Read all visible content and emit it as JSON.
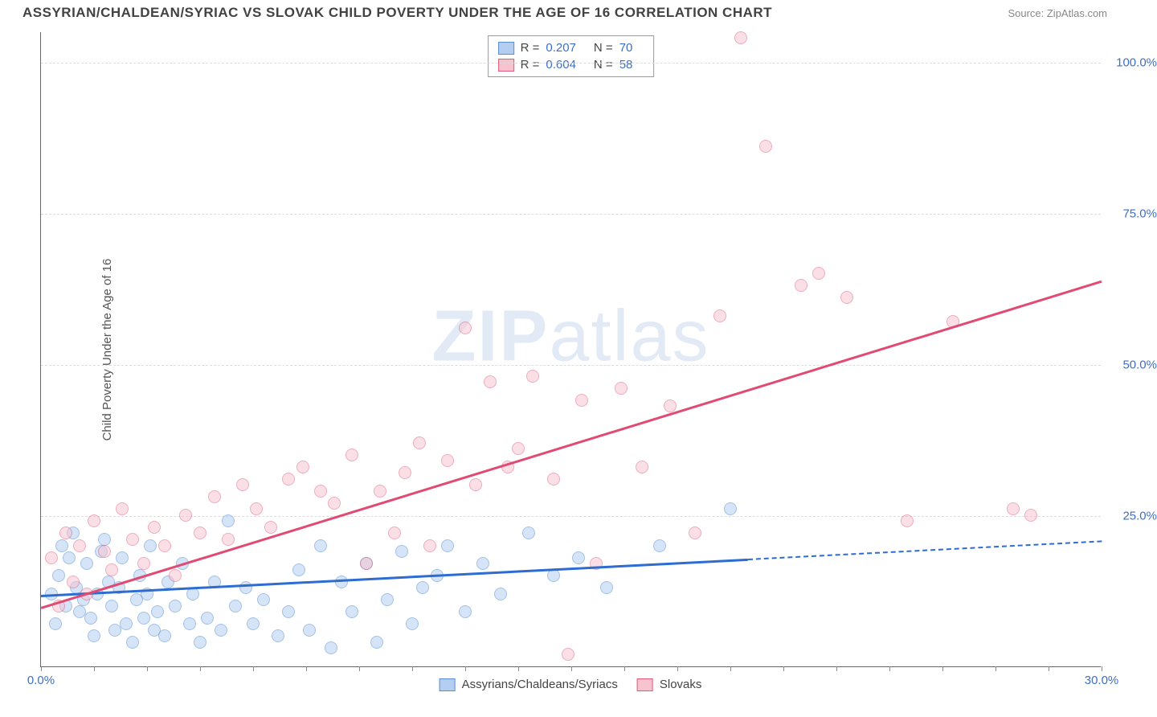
{
  "title": "ASSYRIAN/CHALDEAN/SYRIAC VS SLOVAK CHILD POVERTY UNDER THE AGE OF 16 CORRELATION CHART",
  "source": "Source: ZipAtlas.com",
  "ylabel": "Child Poverty Under the Age of 16",
  "watermark_a": "ZIP",
  "watermark_b": "atlas",
  "chart": {
    "type": "scatter",
    "xlim": [
      0,
      30
    ],
    "ylim": [
      0,
      105
    ],
    "xtick_major": [
      0,
      30
    ],
    "xtick_major_labels": [
      "0.0%",
      "30.0%"
    ],
    "xtick_minor_step": 1.5,
    "ytick_major": [
      25,
      50,
      75,
      100
    ],
    "ytick_major_labels": [
      "25.0%",
      "50.0%",
      "75.0%",
      "100.0%"
    ],
    "grid_color": "#dddddd",
    "axis_color": "#666666",
    "label_fontsize": 15,
    "tick_color": "#3b6fc9",
    "series": [
      {
        "name": "Assyrians/Chaldeans/Syriacs",
        "fill": "#b3cef0",
        "stroke": "#5a8fd6",
        "fill_opacity": 0.55,
        "r_value": "0.207",
        "n_value": "70",
        "marker_radius": 8,
        "trend": {
          "x1": 0,
          "y1": 12,
          "x2": 20,
          "y2": 18,
          "extend_x2": 30,
          "extend_y2": 21,
          "color": "#2d6cd0",
          "width": 2.5
        },
        "points": [
          [
            0.3,
            12
          ],
          [
            0.4,
            7
          ],
          [
            0.5,
            15
          ],
          [
            0.6,
            20
          ],
          [
            0.7,
            10
          ],
          [
            0.8,
            18
          ],
          [
            0.9,
            22
          ],
          [
            1.0,
            13
          ],
          [
            1.1,
            9
          ],
          [
            1.2,
            11
          ],
          [
            1.3,
            17
          ],
          [
            1.4,
            8
          ],
          [
            1.5,
            5
          ],
          [
            1.6,
            12
          ],
          [
            1.7,
            19
          ],
          [
            1.8,
            21
          ],
          [
            1.9,
            14
          ],
          [
            2.0,
            10
          ],
          [
            2.1,
            6
          ],
          [
            2.2,
            13
          ],
          [
            2.3,
            18
          ],
          [
            2.4,
            7
          ],
          [
            2.6,
            4
          ],
          [
            2.7,
            11
          ],
          [
            2.8,
            15
          ],
          [
            2.9,
            8
          ],
          [
            3.0,
            12
          ],
          [
            3.1,
            20
          ],
          [
            3.2,
            6
          ],
          [
            3.3,
            9
          ],
          [
            3.5,
            5
          ],
          [
            3.6,
            14
          ],
          [
            3.8,
            10
          ],
          [
            4.0,
            17
          ],
          [
            4.2,
            7
          ],
          [
            4.3,
            12
          ],
          [
            4.5,
            4
          ],
          [
            4.7,
            8
          ],
          [
            4.9,
            14
          ],
          [
            5.1,
            6
          ],
          [
            5.3,
            24
          ],
          [
            5.5,
            10
          ],
          [
            5.8,
            13
          ],
          [
            6.0,
            7
          ],
          [
            6.3,
            11
          ],
          [
            6.7,
            5
          ],
          [
            7.0,
            9
          ],
          [
            7.3,
            16
          ],
          [
            7.6,
            6
          ],
          [
            7.9,
            20
          ],
          [
            8.2,
            3
          ],
          [
            8.5,
            14
          ],
          [
            8.8,
            9
          ],
          [
            9.2,
            17
          ],
          [
            9.5,
            4
          ],
          [
            9.8,
            11
          ],
          [
            10.2,
            19
          ],
          [
            10.5,
            7
          ],
          [
            10.8,
            13
          ],
          [
            11.2,
            15
          ],
          [
            11.5,
            20
          ],
          [
            12.0,
            9
          ],
          [
            12.5,
            17
          ],
          [
            13.0,
            12
          ],
          [
            13.8,
            22
          ],
          [
            14.5,
            15
          ],
          [
            15.2,
            18
          ],
          [
            16.0,
            13
          ],
          [
            17.5,
            20
          ],
          [
            19.5,
            26
          ]
        ]
      },
      {
        "name": "Slovaks",
        "fill": "#f6c3cf",
        "stroke": "#e05a7a",
        "fill_opacity": 0.5,
        "r_value": "0.604",
        "n_value": "58",
        "marker_radius": 8,
        "trend": {
          "x1": 0,
          "y1": 10,
          "x2": 30,
          "y2": 64,
          "color": "#e14b73",
          "width": 2.5
        },
        "points": [
          [
            0.3,
            18
          ],
          [
            0.5,
            10
          ],
          [
            0.7,
            22
          ],
          [
            0.9,
            14
          ],
          [
            1.1,
            20
          ],
          [
            1.3,
            12
          ],
          [
            1.5,
            24
          ],
          [
            1.8,
            19
          ],
          [
            2.0,
            16
          ],
          [
            2.3,
            26
          ],
          [
            2.6,
            21
          ],
          [
            2.9,
            17
          ],
          [
            3.2,
            23
          ],
          [
            3.5,
            20
          ],
          [
            3.8,
            15
          ],
          [
            4.1,
            25
          ],
          [
            4.5,
            22
          ],
          [
            4.9,
            28
          ],
          [
            5.3,
            21
          ],
          [
            5.7,
            30
          ],
          [
            6.1,
            26
          ],
          [
            6.5,
            23
          ],
          [
            7.0,
            31
          ],
          [
            7.4,
            33
          ],
          [
            7.9,
            29
          ],
          [
            8.3,
            27
          ],
          [
            8.8,
            35
          ],
          [
            9.2,
            17
          ],
          [
            9.6,
            29
          ],
          [
            10.0,
            22
          ],
          [
            10.3,
            32
          ],
          [
            10.7,
            37
          ],
          [
            11.0,
            20
          ],
          [
            11.5,
            34
          ],
          [
            12.0,
            56
          ],
          [
            12.3,
            30
          ],
          [
            12.7,
            47
          ],
          [
            13.2,
            33
          ],
          [
            13.5,
            36
          ],
          [
            13.9,
            48
          ],
          [
            14.5,
            31
          ],
          [
            14.9,
            2
          ],
          [
            15.3,
            44
          ],
          [
            15.7,
            17
          ],
          [
            16.4,
            46
          ],
          [
            17.0,
            33
          ],
          [
            17.8,
            43
          ],
          [
            18.5,
            22
          ],
          [
            19.2,
            58
          ],
          [
            19.8,
            104
          ],
          [
            20.5,
            86
          ],
          [
            21.5,
            63
          ],
          [
            22.0,
            65
          ],
          [
            22.8,
            61
          ],
          [
            24.5,
            24
          ],
          [
            25.8,
            57
          ],
          [
            27.5,
            26
          ],
          [
            28.0,
            25
          ]
        ]
      }
    ]
  },
  "legend_bottom": [
    {
      "label": "Assyrians/Chaldeans/Syriacs",
      "fill": "#b3cef0",
      "stroke": "#5a8fd6"
    },
    {
      "label": "Slovaks",
      "fill": "#f6c3cf",
      "stroke": "#e05a7a"
    }
  ]
}
